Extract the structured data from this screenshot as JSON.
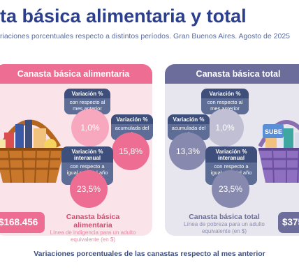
{
  "header": {
    "title": "ta básica alimentaria y total",
    "subtitle": "riaciones porcentuales respecto a distintos períodos. Gran Buenos Aires. Agosto de 2025"
  },
  "left_panel": {
    "header": "Canasta básica alimentaria",
    "monthly": {
      "title": "Variación %",
      "desc": "con respecto al mes anterior",
      "value": "1,0%"
    },
    "ytd": {
      "title": "Variación %",
      "desc": "acumulada del año",
      "value": "15,8%"
    },
    "yoy": {
      "title": "Variación % interanual",
      "desc": "con respecto a igual mes del año anterior",
      "value": "23,5%"
    },
    "amount": "$168.456",
    "amount_title": "Canasta básica alimentaria",
    "amount_desc": "Línea de indigencia para un adulto equivalente (en $)"
  },
  "right_panel": {
    "header": "Canasta básica total",
    "monthly": {
      "title": "Variación %",
      "desc": "con respecto al mes anterior",
      "value": "1,0%"
    },
    "ytd": {
      "title": "Variación %",
      "desc": "acumulada del año",
      "value": "13,3%"
    },
    "yoy": {
      "title": "Variación % interanual",
      "desc": "con respecto a igual mes del año anterior",
      "value": "23,5%"
    },
    "amount": "$375",
    "amount_title": "Canasta básica total",
    "amount_desc": "Línea de pobreza para un adulto equivalente (en $)",
    "card_text": "SUBE"
  },
  "footer": {
    "text": "Variaciones porcentuales de las canastas respecto al mes anterior"
  },
  "colors": {
    "title": "#2c3f8c",
    "pink": "#ee6d93",
    "pink_bg": "#fbe3ea",
    "purple": "#6c6d9a",
    "purple_bg": "#e7e6ef",
    "navy": "#3e4f7c"
  }
}
